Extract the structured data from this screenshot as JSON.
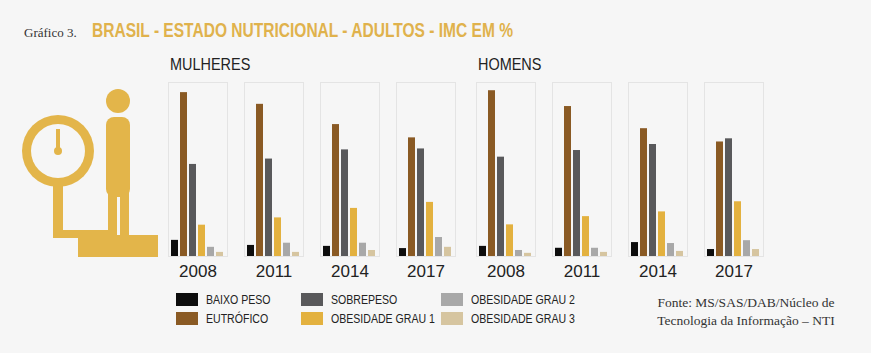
{
  "label": "Gráfico 3.",
  "title": "BRASIL - ESTADO NUTRICIONAL - ADULTOS - IMC EM %",
  "source": "Fonte: MS/SAS/DAB/Núcleo de Tecnologia da Informação – NTI",
  "chart_data": [
    {
      "type": "bar",
      "title": "MULHERES",
      "categories": [
        "2008",
        "2011",
        "2014",
        "2017"
      ],
      "series": [
        {
          "name": "BAIXO PESO",
          "color": "#0d0d0d",
          "values": [
            5.1,
            3.5,
            3.2,
            2.5
          ]
        },
        {
          "name": "EUTRÓFICO",
          "color": "#8a5a24",
          "values": [
            51.8,
            48.1,
            41.7,
            37.5
          ]
        },
        {
          "name": "SOBREPESO",
          "color": "#59595b",
          "values": [
            29.1,
            30.8,
            33.7,
            34.0
          ]
        },
        {
          "name": "OBESIDADE GRAU 1",
          "color": "#e3b13f",
          "values": [
            9.9,
            12.2,
            15.2,
            17.1
          ]
        },
        {
          "name": "OBESIDADE GRAU 2",
          "color": "#a8a8a8",
          "values": [
            2.9,
            4.2,
            4.2,
            6.0
          ]
        },
        {
          "name": "OBESIDADE GRAU 3",
          "color": "#d6c5a0",
          "values": [
            1.3,
            1.3,
            1.9,
            2.9
          ]
        }
      ],
      "ylim": [
        0,
        55
      ],
      "yticks": [],
      "tick_labels": "x",
      "grid": false,
      "legend": "bottom"
    },
    {
      "type": "bar",
      "title": "HOMENS",
      "categories": [
        "2008",
        "2011",
        "2014",
        "2017"
      ],
      "series": [
        {
          "name": "BAIXO PESO",
          "color": "#0d0d0d",
          "values": [
            3.2,
            2.6,
            4.4,
            2.2
          ]
        },
        {
          "name": "EUTRÓFICO",
          "color": "#8a5a24",
          "values": [
            52.4,
            47.4,
            40.4,
            36.2
          ]
        },
        {
          "name": "SOBREPESO",
          "color": "#59595b",
          "values": [
            31.4,
            33.5,
            35.4,
            37.2
          ]
        },
        {
          "name": "OBESIDADE GRAU 1",
          "color": "#e3b13f",
          "values": [
            10.0,
            12.6,
            14.1,
            17.3
          ]
        },
        {
          "name": "OBESIDADE GRAU 2",
          "color": "#a8a8a8",
          "values": [
            1.9,
            2.6,
            4.1,
            5.0
          ]
        },
        {
          "name": "OBESIDADE GRAU 3",
          "color": "#d6c5a0",
          "values": [
            1.0,
            1.3,
            1.6,
            2.2
          ]
        }
      ],
      "ylim": [
        0,
        55
      ],
      "yticks": [],
      "tick_labels": "x",
      "grid": false
    }
  ]
}
